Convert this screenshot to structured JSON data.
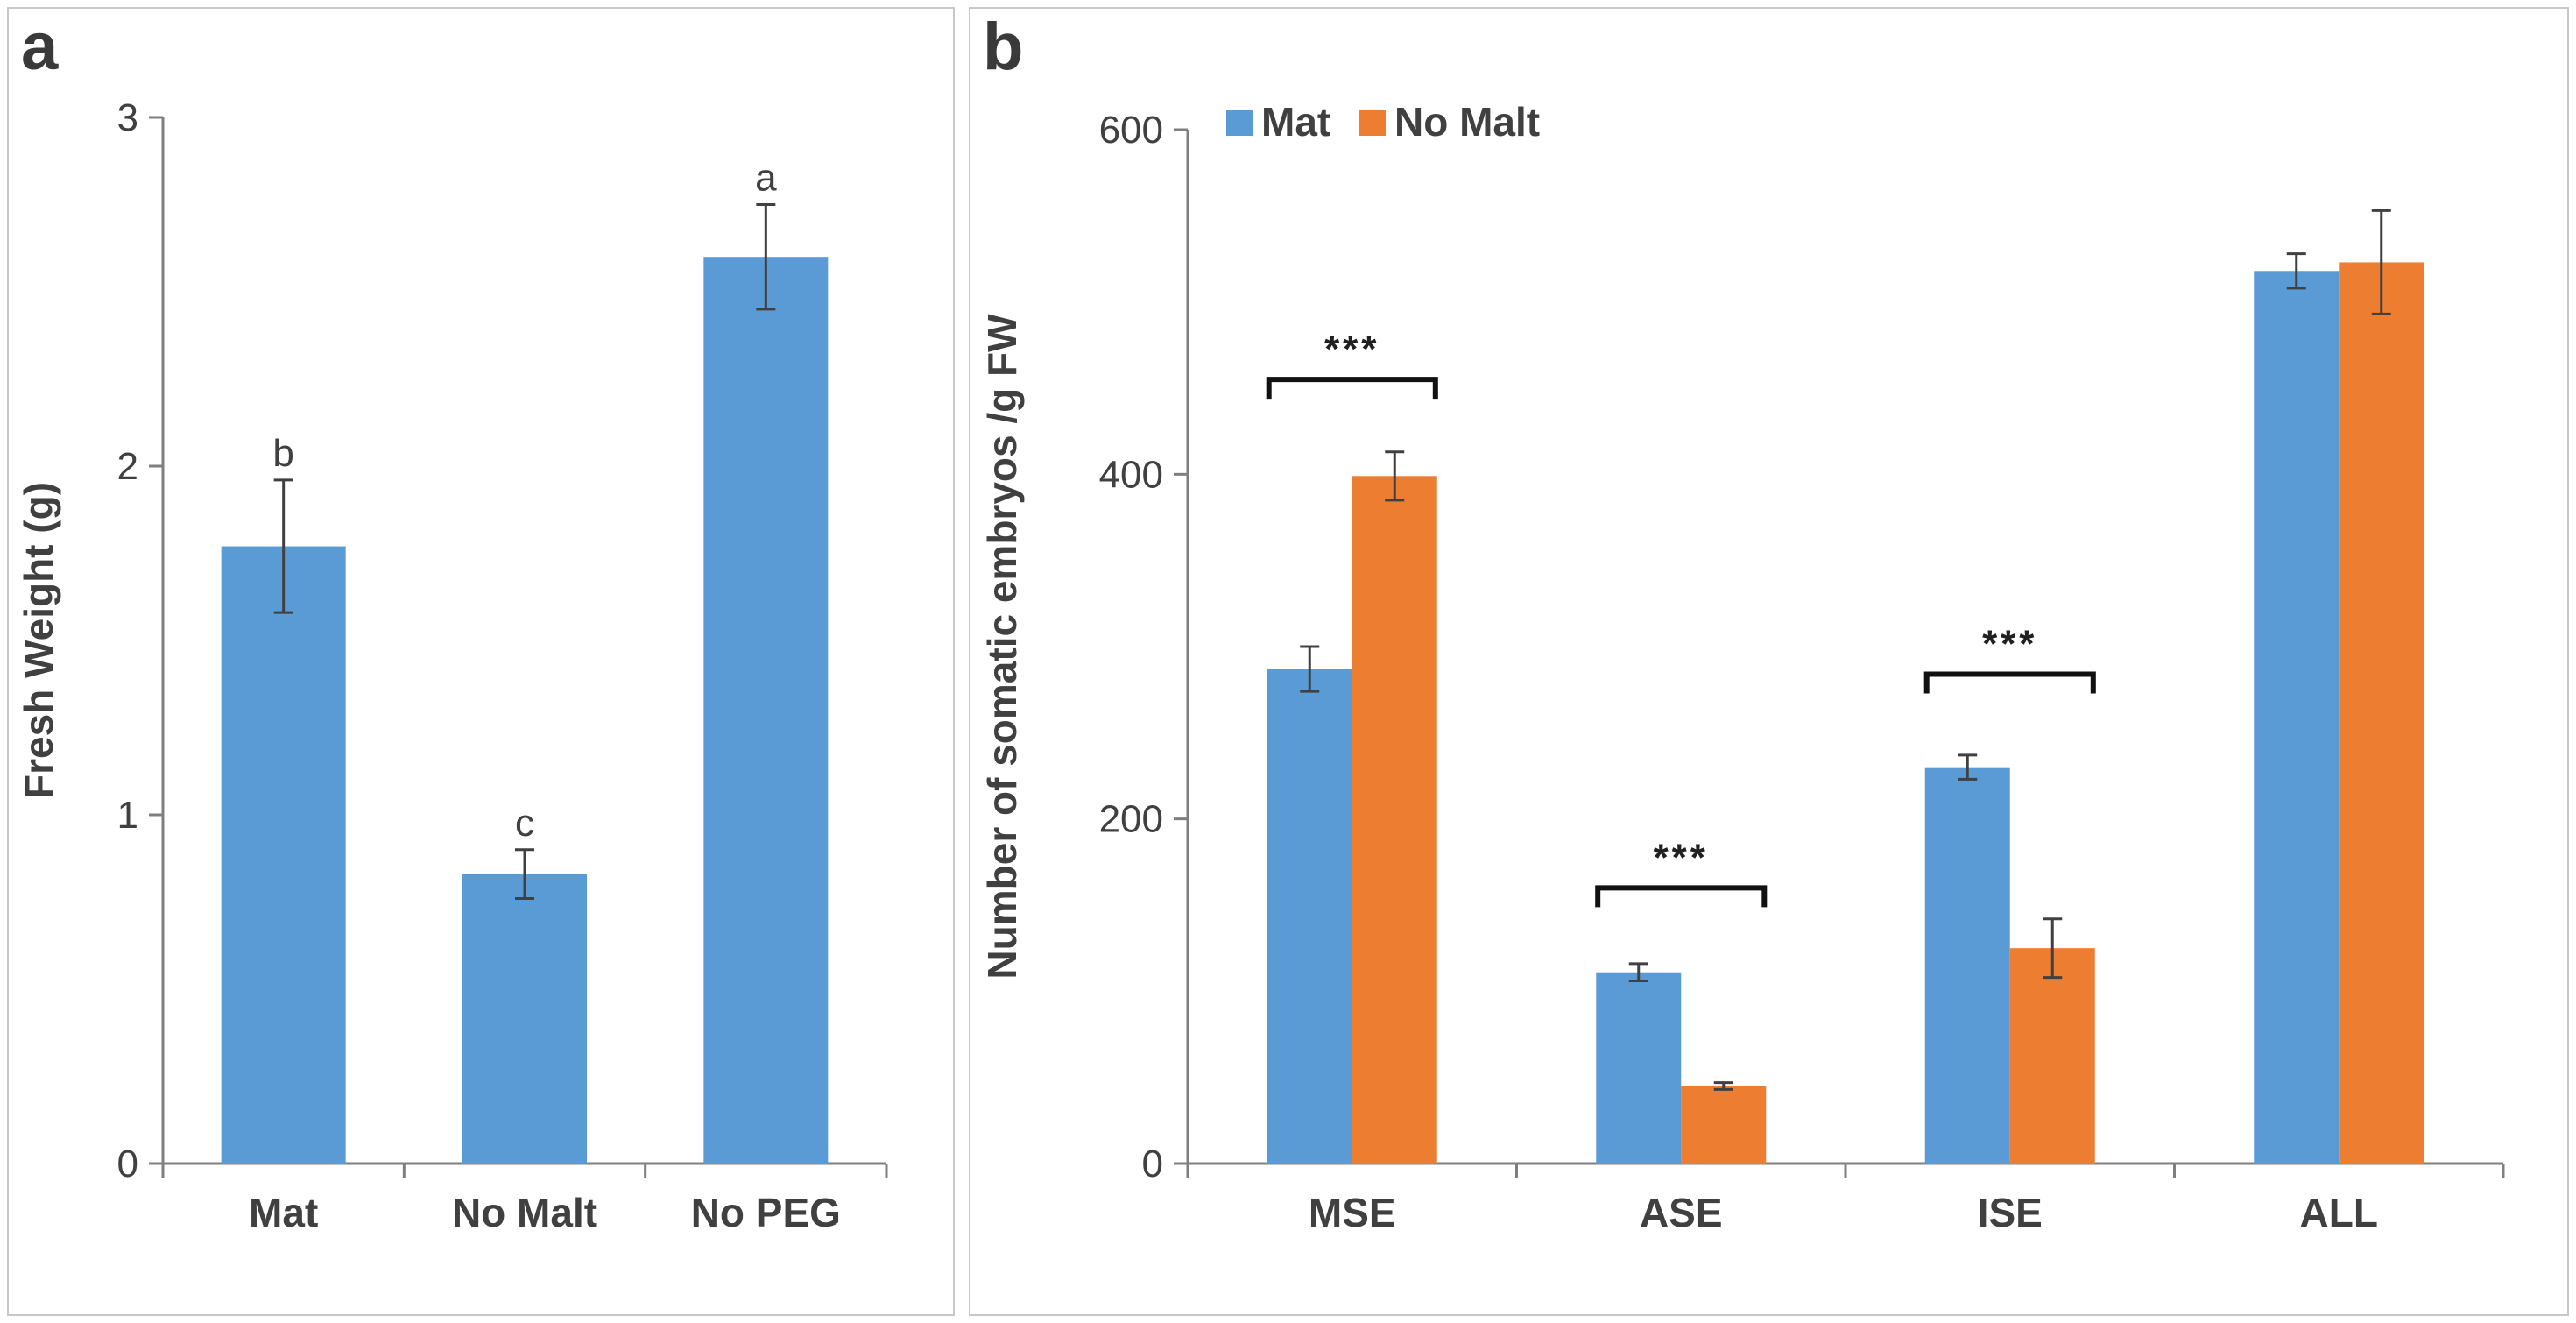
{
  "chart_data": [
    {
      "panel_label": "a",
      "type": "bar",
      "categories": [
        "Mat",
        "No Malt",
        "No PEG"
      ],
      "series": [
        {
          "name": "Fresh Weight",
          "values": [
            1.77,
            0.83,
            2.6
          ],
          "errors": [
            0.19,
            0.07,
            0.15
          ],
          "color": "#5b9bd5"
        }
      ],
      "group_letters": [
        "b",
        "c",
        "a"
      ],
      "ylabel": "Fresh Weight (g)",
      "xlabel": "",
      "ylim": [
        0,
        3
      ],
      "yticks": [
        "0",
        "1",
        "2",
        "3"
      ],
      "grid": false
    },
    {
      "panel_label": "b",
      "type": "bar",
      "categories": [
        "MSE",
        "ASE",
        "ISE",
        "ALL"
      ],
      "series": [
        {
          "name": "Mat",
          "values": [
            287,
            111,
            230,
            518
          ],
          "errors": [
            13,
            5,
            7,
            10
          ],
          "color": "#5b9bd5"
        },
        {
          "name": "No Malt",
          "values": [
            399,
            45,
            125,
            523
          ],
          "errors": [
            14,
            2,
            17,
            30
          ],
          "color": "#ed7d31"
        }
      ],
      "significance": [
        {
          "category": "MSE",
          "label": "***",
          "bracket_value": 455
        },
        {
          "category": "ASE",
          "label": "***",
          "bracket_value": 160
        },
        {
          "category": "ISE",
          "label": "***",
          "bracket_value": 284
        }
      ],
      "ylabel": "Number of somatic embryos /g FW",
      "xlabel": "",
      "ylim": [
        0,
        600
      ],
      "yticks": [
        "0",
        "200",
        "400",
        "600"
      ],
      "legend_position": "top-left",
      "grid": false
    }
  ]
}
